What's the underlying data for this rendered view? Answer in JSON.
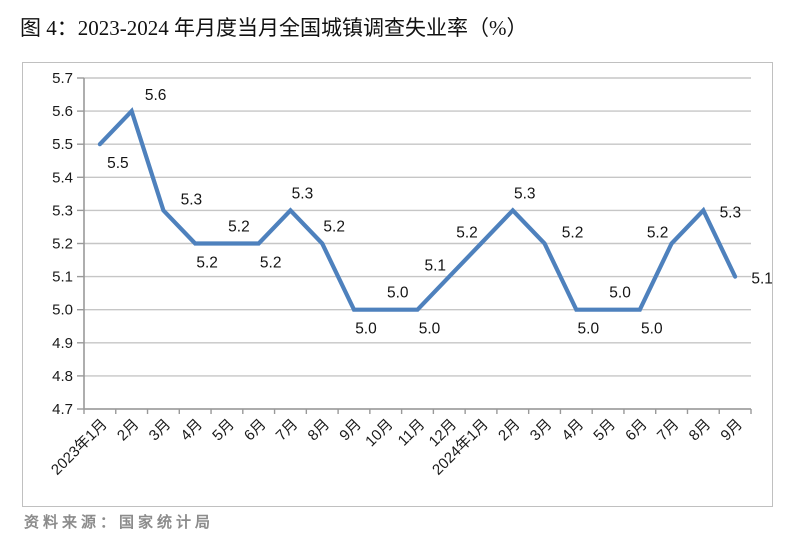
{
  "title": "图 4：2023-2024 年月度当月全国城镇调查失业率（%）",
  "source": "资料来源：国家统计局",
  "colors": {
    "line": "#4e81bd",
    "grid": "#c6c6c6",
    "axis": "#999999",
    "chart_border": "#c0c0c0",
    "tick_text": "#1a1a1a",
    "data_label_text": "#141414",
    "source_text": "#8c8c8c"
  },
  "chart_data": {
    "type": "line",
    "title": "图 4：2023-2024 年月度当月全国城镇调查失业率（%）",
    "categories": [
      "2023年1月",
      "2月",
      "3月",
      "4月",
      "5月",
      "6月",
      "7月",
      "8月",
      "9月",
      "10月",
      "11月",
      "12月",
      "2024年1月",
      "2月",
      "3月",
      "4月",
      "5月",
      "6月",
      "7月",
      "8月",
      "9月"
    ],
    "values": [
      5.5,
      5.6,
      5.3,
      5.2,
      5.2,
      5.2,
      5.3,
      5.2,
      5.0,
      5.0,
      5.0,
      5.1,
      5.2,
      5.3,
      5.2,
      5.0,
      5.0,
      5.0,
      5.2,
      5.3,
      5.1
    ],
    "value_labels": [
      "5.5",
      "5.6",
      "5.3",
      "5.2",
      "5.2",
      "5.2",
      "5.3",
      "5.2",
      "5.0",
      "5.0",
      "5.0",
      "5.1",
      "5.2",
      "5.3",
      "5.2",
      "5.0",
      "5.0",
      "5.0",
      "5.2",
      "5.3",
      "5.1"
    ],
    "label_placements": [
      "below-right",
      "above-right",
      "right-above",
      "below",
      "above",
      "below",
      "above",
      "above",
      "below",
      "above",
      "below",
      "above-left",
      "above-left",
      "above",
      "right-above",
      "below",
      "above",
      "below",
      "above-left",
      "right",
      "right"
    ],
    "yticks": [
      "5.7",
      "5.6",
      "5.5",
      "5.4",
      "5.3",
      "5.2",
      "5.1",
      "5.0",
      "4.9",
      "4.8",
      "4.7"
    ],
    "ylim": [
      4.7,
      5.7
    ],
    "xlabel": "",
    "ylabel": "",
    "grid": true,
    "legend": null,
    "x_label_rotation_deg": -45
  }
}
